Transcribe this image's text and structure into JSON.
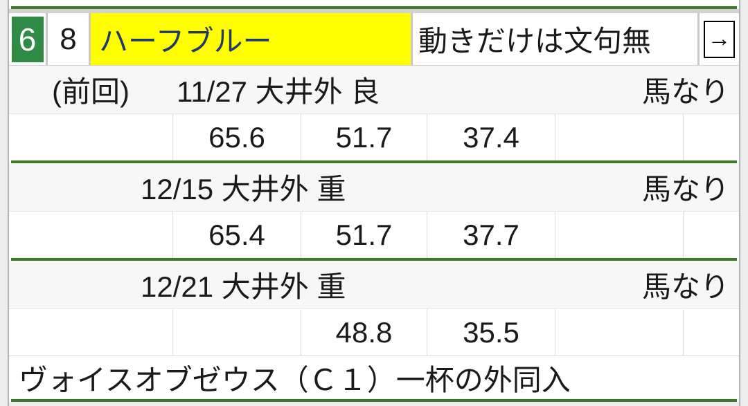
{
  "colors": {
    "frame_badge_green": "#2f8b46",
    "divider_green": "#3a7d28",
    "highlight_yellow": "#ffff00",
    "horse_name_navy": "#1f3a6b",
    "row_alt_gray": "#f7f7f7"
  },
  "header": {
    "frame_number": "6",
    "horse_number": "8",
    "horse_name": "ハーフブルー",
    "comment": "動きだけは文句無",
    "arrow_label": "→"
  },
  "workouts": [
    {
      "prev_label": "(前回)",
      "date": "11/27 大井外 良",
      "effort": "馬なり",
      "times": [
        "",
        "65.6",
        "51.7",
        "37.4",
        "",
        ""
      ]
    },
    {
      "prev_label": "",
      "date": "12/15 大井外 重",
      "effort": "馬なり",
      "times": [
        "",
        "65.4",
        "51.7",
        "37.7",
        "",
        ""
      ]
    },
    {
      "prev_label": "",
      "date": "12/21 大井外 重",
      "effort": "馬なり",
      "times": [
        "",
        "",
        "48.8",
        "35.5",
        "",
        ""
      ]
    }
  ],
  "footer": {
    "race_note": "ヴォイスオブゼウス（Ｃ１）一杯の外同入"
  }
}
